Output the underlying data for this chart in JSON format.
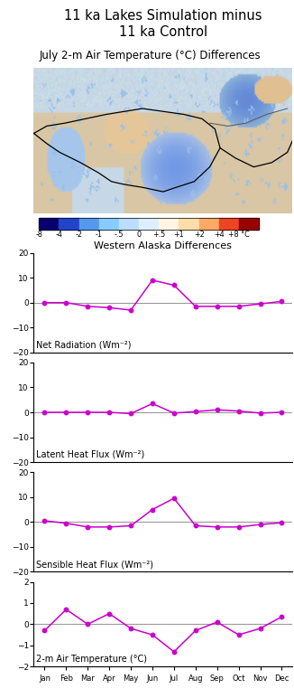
{
  "title": "11 ka Lakes Simulation minus\n11 ka Control",
  "map_subtitle": "July 2-m Air Temperature (°C) Differences",
  "colorbar_labels": [
    "-8",
    "-4",
    "-2",
    "-1",
    "-.5",
    "0",
    "+.5",
    "+1",
    "+2",
    "+4",
    "+8 °C"
  ],
  "panel_title": "Western Alaska Differences",
  "months": [
    "Jan",
    "Feb",
    "Mar",
    "Apr",
    "May",
    "Jun",
    "Jul",
    "Aug",
    "Sep",
    "Oct",
    "Nov",
    "Dec"
  ],
  "net_radiation": [
    0.0,
    0.0,
    -1.5,
    -2.0,
    -3.0,
    9.0,
    7.0,
    -1.5,
    -1.5,
    -1.5,
    -0.5,
    0.5
  ],
  "latent_heat": [
    0.0,
    0.0,
    0.0,
    0.0,
    -0.5,
    3.5,
    -0.3,
    0.3,
    1.0,
    0.5,
    -0.3,
    0.0
  ],
  "sensible_heat": [
    0.5,
    -0.5,
    -2.0,
    -2.0,
    -1.5,
    5.0,
    9.5,
    -1.5,
    -2.0,
    -2.0,
    -1.0,
    -0.3
  ],
  "air_temp": [
    -0.3,
    0.7,
    0.0,
    0.5,
    -0.2,
    -0.5,
    -1.3,
    -0.3,
    0.1,
    -0.5,
    -0.2,
    0.35
  ],
  "line_color": "#CC00CC",
  "zero_line_color": "#999999",
  "cbar_colors": [
    "#08006E",
    "#2244CC",
    "#5599EE",
    "#88CCFF",
    "#BBDDFF",
    "#DDEEFF",
    "#FFF5E0",
    "#FFDDAA",
    "#FFAA66",
    "#EE4422",
    "#990000"
  ],
  "map_bg_color": "#D8C8A8",
  "map_sea_color": "#C8D8E8"
}
